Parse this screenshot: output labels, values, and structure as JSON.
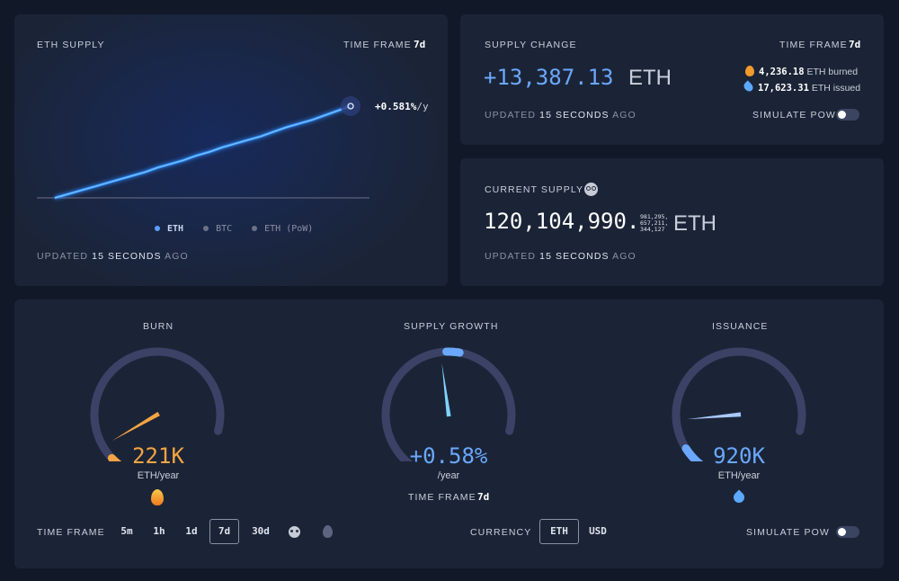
{
  "supply_chart": {
    "title": "ETH SUPPLY",
    "time_frame_label": "TIME FRAME",
    "time_frame_value": "7d",
    "growth_label_value": "+0.581%",
    "growth_label_unit": "/y",
    "legend": [
      {
        "label": "ETH",
        "color": "#5b9dff",
        "active": true
      },
      {
        "label": "BTC",
        "color": "#6b7188",
        "active": false
      },
      {
        "label": "ETH (PoW)",
        "color": "#6b7188",
        "active": false
      }
    ],
    "updated_prefix": "UPDATED",
    "updated_value": "15 SECONDS",
    "updated_suffix": "AGO"
  },
  "chart_data": {
    "type": "line",
    "title": "ETH SUPPLY",
    "series": [
      {
        "name": "ETH",
        "values": [
          0.0,
          0.04,
          0.08,
          0.12,
          0.16,
          0.2,
          0.24,
          0.28,
          0.33,
          0.37,
          0.41,
          0.46,
          0.5,
          0.55,
          0.59,
          0.63,
          0.67,
          0.72,
          0.77,
          0.81,
          0.85,
          0.9,
          0.95,
          1.0
        ]
      }
    ],
    "end_annotation": "+0.581%/y",
    "grid": false,
    "legend_position": "bottom-center"
  },
  "supply_change": {
    "title": "SUPPLY CHANGE",
    "time_frame_label": "TIME FRAME",
    "time_frame_value": "7d",
    "value": "+13,387.13",
    "unit": "ETH",
    "burned_icon": "fire-icon",
    "burned_value": "4,236.18",
    "burned_label": "ETH burned",
    "issued_icon": "droplet-icon",
    "issued_value": "17,623.31",
    "issued_label": "ETH issued",
    "updated_prefix": "UPDATED",
    "updated_value": "15 SECONDS",
    "updated_suffix": "AGO",
    "simulate_label": "SIMULATE PoW"
  },
  "current_supply": {
    "title": "CURRENT SUPPLY",
    "icon": "nerd-face-icon",
    "value_main": "120,104,990.",
    "value_fraction": [
      "981,295,",
      "657,211,",
      "344,127"
    ],
    "unit": "ETH",
    "updated_prefix": "UPDATED",
    "updated_value": "15 SECONDS",
    "updated_suffix": "AGO"
  },
  "gauges": {
    "burn": {
      "title": "BURN",
      "value": "221K",
      "unit": "ETH/year",
      "icon": "fire-icon",
      "color": "#f5a443",
      "level": 0.1
    },
    "growth": {
      "title": "SUPPLY GROWTH",
      "value": "+0.58%",
      "unit": "/year",
      "time_frame_label": "TIME FRAME",
      "time_frame_value": "7d",
      "color": "#6aa8ff",
      "level": 0.55
    },
    "issuance": {
      "title": "ISSUANCE",
      "value": "920K",
      "unit": "ETH/year",
      "icon": "droplet-icon",
      "color": "#6aa8ff",
      "level": 0.2
    }
  },
  "footer": {
    "time_frame_label": "TIME FRAME",
    "time_frames": [
      "5m",
      "1h",
      "1d",
      "7d",
      "30d"
    ],
    "active_time_frame": "7d",
    "extra_icons": [
      "panda-icon",
      "fire-icon"
    ],
    "currency_label": "CURRENCY",
    "currencies": [
      "ETH",
      "USD"
    ],
    "active_currency": "ETH",
    "simulate_label": "SIMULATE PoW"
  }
}
